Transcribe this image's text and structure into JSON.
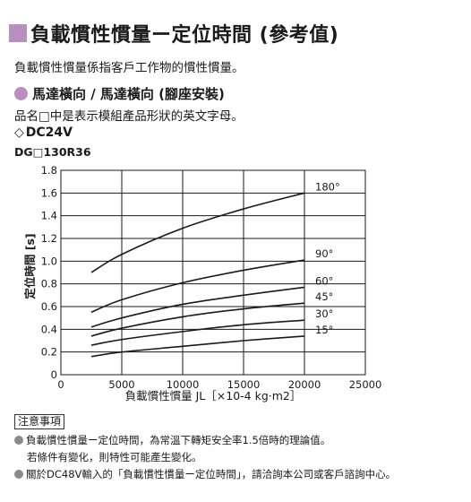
{
  "header": {
    "title": "負載慣性慣量ー定位時間 (參考值)",
    "intro": "負載慣性慣量係指客戶工作物的慣性慣量。",
    "sub_heading": "馬達橫向 / 馬達橫向 (腳座安裝)",
    "model_note": "品名□中是表示模組產品形狀的英文字母。",
    "voltage": "DC24V",
    "diamond_icon": "◇",
    "model": "DG□130R36"
  },
  "chart_data": {
    "type": "line",
    "xlabel": "負載慣性慣量 JL［×10-4 kg·m2］",
    "ylabel": "定位時間 [s]",
    "xlim": [
      0,
      25000
    ],
    "ylim": [
      0,
      1.8
    ],
    "xticks": [
      0,
      5000,
      10000,
      15000,
      20000,
      25000
    ],
    "yticks": [
      0,
      0.2,
      0.4,
      0.6,
      0.8,
      1.0,
      1.2,
      1.4,
      1.6,
      1.8
    ],
    "xtick_labels": [
      "0",
      "5000",
      "10000",
      "15000",
      "20000",
      "25000"
    ],
    "ytick_labels": [
      "0",
      "0.2",
      "0.4",
      "0.6",
      "0.8",
      "1.0",
      "1.2",
      "1.4",
      "1.6",
      "1.8"
    ],
    "grid": true,
    "series": [
      {
        "name": "180°",
        "x": [
          2500,
          5000,
          10000,
          15000,
          20000
        ],
        "values": [
          0.9,
          1.06,
          1.29,
          1.46,
          1.6
        ]
      },
      {
        "name": "90°",
        "x": [
          2500,
          5000,
          10000,
          15000,
          20000
        ],
        "values": [
          0.55,
          0.66,
          0.81,
          0.92,
          1.01
        ]
      },
      {
        "name": "60°",
        "x": [
          2500,
          5000,
          10000,
          15000,
          20000
        ],
        "values": [
          0.42,
          0.5,
          0.62,
          0.7,
          0.77
        ]
      },
      {
        "name": "45°",
        "x": [
          2500,
          5000,
          10000,
          15000,
          20000
        ],
        "values": [
          0.34,
          0.41,
          0.51,
          0.58,
          0.63
        ]
      },
      {
        "name": "30°",
        "x": [
          2500,
          5000,
          10000,
          15000,
          20000
        ],
        "values": [
          0.26,
          0.31,
          0.38,
          0.44,
          0.48
        ]
      },
      {
        "name": "15°",
        "x": [
          2500,
          5000,
          10000,
          15000,
          20000
        ],
        "values": [
          0.16,
          0.2,
          0.25,
          0.3,
          0.34
        ]
      }
    ]
  },
  "notes": {
    "heading": "注意事項",
    "line1": "負載慣性慣量ー定位時間，為常溫下轉矩安全率1.5倍時的理論值。",
    "line1b": "若條件有變化，則特性可能產生變化。",
    "line2": "關於DC48V輸入的「負載慣性慣量ー定位時間」，請洽詢本公司或客戶諮詢中心。",
    "bullet_color": "#8a8a8a"
  },
  "colors": {
    "accent": "#b98fc0",
    "line": "#1a1a1a"
  }
}
